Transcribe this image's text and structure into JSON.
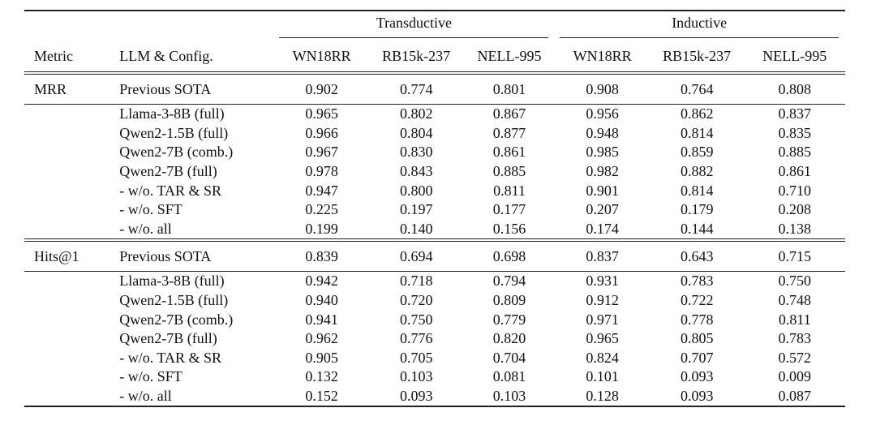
{
  "header": {
    "metric_label": "Metric",
    "config_label": "LLM & Config.",
    "groups": [
      "Transductive",
      "Inductive"
    ],
    "datasets": [
      "WN18RR",
      "RB15k-237",
      "NELL-995",
      "WN18RR",
      "RB15k-237",
      "NELL-995"
    ]
  },
  "sections": [
    {
      "metric": "MRR",
      "sota": {
        "config": "Previous SOTA",
        "values": [
          "0.902",
          "0.774",
          "0.801",
          "0.908",
          "0.764",
          "0.808"
        ]
      },
      "rows": [
        {
          "config": "Llama-3-8B (full)",
          "values": [
            "0.965",
            "0.802",
            "0.867",
            "0.956",
            "0.862",
            "0.837"
          ],
          "bold": []
        },
        {
          "config": "Qwen2-1.5B (full)",
          "values": [
            "0.966",
            "0.804",
            "0.877",
            "0.948",
            "0.814",
            "0.835"
          ],
          "bold": []
        },
        {
          "config": "Qwen2-7B (comb.)",
          "values": [
            "0.967",
            "0.830",
            "0.861",
            "0.985",
            "0.859",
            "0.885"
          ],
          "bold": [
            3,
            5
          ]
        },
        {
          "config": "Qwen2-7B (full)",
          "values": [
            "0.978",
            "0.843",
            "0.885",
            "0.982",
            "0.882",
            "0.861"
          ],
          "bold": [
            0,
            1,
            2,
            4
          ]
        },
        {
          "config": "- w/o. TAR & SR",
          "values": [
            "0.947",
            "0.800",
            "0.811",
            "0.901",
            "0.814",
            "0.710"
          ],
          "bold": []
        },
        {
          "config": "- w/o. SFT",
          "values": [
            "0.225",
            "0.197",
            "0.177",
            "0.207",
            "0.179",
            "0.208"
          ],
          "bold": []
        },
        {
          "config": "- w/o. all",
          "values": [
            "0.199",
            "0.140",
            "0.156",
            "0.174",
            "0.144",
            "0.138"
          ],
          "bold": []
        }
      ]
    },
    {
      "metric": "Hits@1",
      "sota": {
        "config": "Previous SOTA",
        "values": [
          "0.839",
          "0.694",
          "0.698",
          "0.837",
          "0.643",
          "0.715"
        ]
      },
      "rows": [
        {
          "config": "Llama-3-8B (full)",
          "values": [
            "0.942",
            "0.718",
            "0.794",
            "0.931",
            "0.783",
            "0.750"
          ],
          "bold": []
        },
        {
          "config": "Qwen2-1.5B (full)",
          "values": [
            "0.940",
            "0.720",
            "0.809",
            "0.912",
            "0.722",
            "0.748"
          ],
          "bold": []
        },
        {
          "config": "Qwen2-7B (comb.)",
          "values": [
            "0.941",
            "0.750",
            "0.779",
            "0.971",
            "0.778",
            "0.811"
          ],
          "bold": [
            3,
            5
          ]
        },
        {
          "config": "Qwen2-7B (full)",
          "values": [
            "0.962",
            "0.776",
            "0.820",
            "0.965",
            "0.805",
            "0.783"
          ],
          "bold": [
            0,
            1,
            2,
            4
          ]
        },
        {
          "config": "- w/o. TAR & SR",
          "values": [
            "0.905",
            "0.705",
            "0.704",
            "0.824",
            "0.707",
            "0.572"
          ],
          "bold": []
        },
        {
          "config": "- w/o. SFT",
          "values": [
            "0.132",
            "0.103",
            "0.081",
            "0.101",
            "0.093",
            "0.009"
          ],
          "bold": []
        },
        {
          "config": "- w/o. all",
          "values": [
            "0.152",
            "0.093",
            "0.103",
            "0.128",
            "0.093",
            "0.087"
          ],
          "bold": []
        }
      ]
    }
  ]
}
